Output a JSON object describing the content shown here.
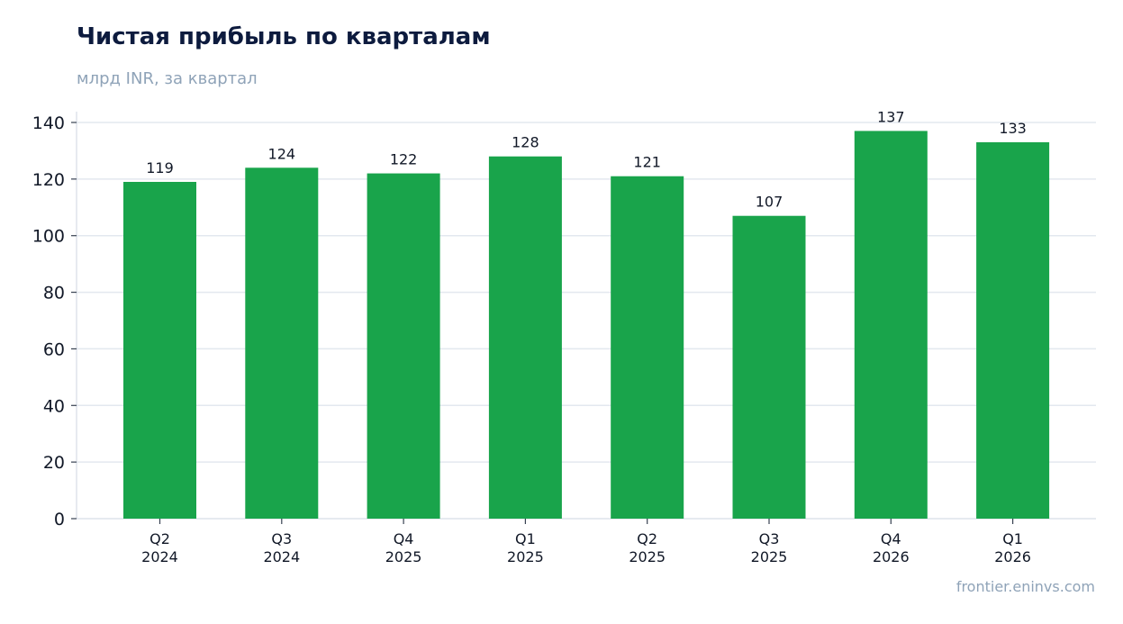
{
  "header": {
    "title": "Чистая прибыль по кварталам",
    "subtitle": "млрд INR, за квартал"
  },
  "footer": {
    "source": "frontier.eninvs.com"
  },
  "colors": {
    "bar": "#19a44b",
    "grid": "#e3e8ef",
    "axis": "#d7dde6",
    "title": "#0d1b3e",
    "muted": "#8fa3b8"
  },
  "chart_data": {
    "type": "bar",
    "title": "Чистая прибыль по кварталам",
    "subtitle": "млрд INR, за квартал",
    "categories": [
      [
        "Q2",
        "2024"
      ],
      [
        "Q3",
        "2024"
      ],
      [
        "Q4",
        "2025"
      ],
      [
        "Q1",
        "2025"
      ],
      [
        "Q2",
        "2025"
      ],
      [
        "Q3",
        "2025"
      ],
      [
        "Q4",
        "2026"
      ],
      [
        "Q1",
        "2026"
      ]
    ],
    "values": [
      119,
      124,
      122,
      128,
      121,
      107,
      137,
      133
    ],
    "data_labels": [
      "119",
      "124",
      "122",
      "128",
      "121",
      "107",
      "137",
      "133"
    ],
    "ylim": [
      0,
      140
    ],
    "yticks": [
      0,
      20,
      40,
      60,
      80,
      100,
      120,
      140
    ],
    "grid": true,
    "legend": "none"
  }
}
